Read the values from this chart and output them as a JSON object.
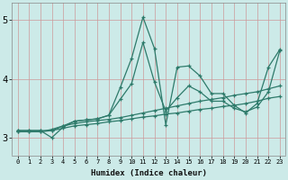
{
  "xlabel": "Humidex (Indice chaleur)",
  "xlim": [
    -0.5,
    23.5
  ],
  "ylim": [
    2.7,
    5.3
  ],
  "yticks": [
    3,
    4,
    5
  ],
  "xticks": [
    0,
    1,
    2,
    3,
    4,
    5,
    6,
    7,
    8,
    9,
    10,
    11,
    12,
    13,
    14,
    15,
    16,
    17,
    18,
    19,
    20,
    21,
    22,
    23
  ],
  "bg_color": "#cceae8",
  "grid_color": "#cc9999",
  "line_color": "#2d7a6a",
  "series": [
    {
      "x": [
        0,
        1,
        2,
        3,
        4,
        5,
        6,
        7,
        8,
        9,
        10,
        11,
        12,
        13,
        14,
        15,
        16,
        17,
        18,
        19,
        20,
        21,
        22,
        23
      ],
      "y": [
        3.12,
        3.12,
        3.12,
        3.0,
        3.18,
        3.28,
        3.3,
        3.32,
        3.38,
        3.85,
        4.35,
        5.05,
        4.52,
        3.22,
        4.2,
        4.22,
        4.05,
        3.75,
        3.75,
        3.55,
        3.42,
        3.58,
        4.2,
        4.5
      ]
    },
    {
      "x": [
        0,
        1,
        2,
        3,
        4,
        5,
        6,
        7,
        8,
        9,
        10,
        11,
        12,
        13,
        14,
        15,
        16,
        17,
        18,
        19,
        20,
        21,
        22,
        23
      ],
      "y": [
        3.12,
        3.12,
        3.12,
        3.12,
        3.2,
        3.28,
        3.3,
        3.32,
        3.38,
        3.65,
        3.92,
        4.62,
        3.95,
        3.45,
        3.68,
        3.88,
        3.78,
        3.62,
        3.62,
        3.5,
        3.44,
        3.52,
        3.78,
        4.48
      ]
    },
    {
      "x": [
        0,
        1,
        2,
        3,
        4,
        5,
        6,
        7,
        8,
        9,
        10,
        11,
        12,
        13,
        14,
        15,
        16,
        17,
        18,
        19,
        20,
        21,
        22,
        23
      ],
      "y": [
        3.1,
        3.1,
        3.1,
        3.14,
        3.2,
        3.24,
        3.27,
        3.29,
        3.31,
        3.34,
        3.38,
        3.42,
        3.46,
        3.5,
        3.54,
        3.58,
        3.62,
        3.65,
        3.68,
        3.72,
        3.75,
        3.78,
        3.83,
        3.88
      ]
    },
    {
      "x": [
        0,
        1,
        2,
        3,
        4,
        5,
        6,
        7,
        8,
        9,
        10,
        11,
        12,
        13,
        14,
        15,
        16,
        17,
        18,
        19,
        20,
        21,
        22,
        23
      ],
      "y": [
        3.1,
        3.1,
        3.1,
        3.12,
        3.16,
        3.2,
        3.22,
        3.24,
        3.27,
        3.29,
        3.32,
        3.35,
        3.37,
        3.4,
        3.42,
        3.45,
        3.48,
        3.5,
        3.53,
        3.55,
        3.58,
        3.62,
        3.67,
        3.7
      ]
    }
  ]
}
